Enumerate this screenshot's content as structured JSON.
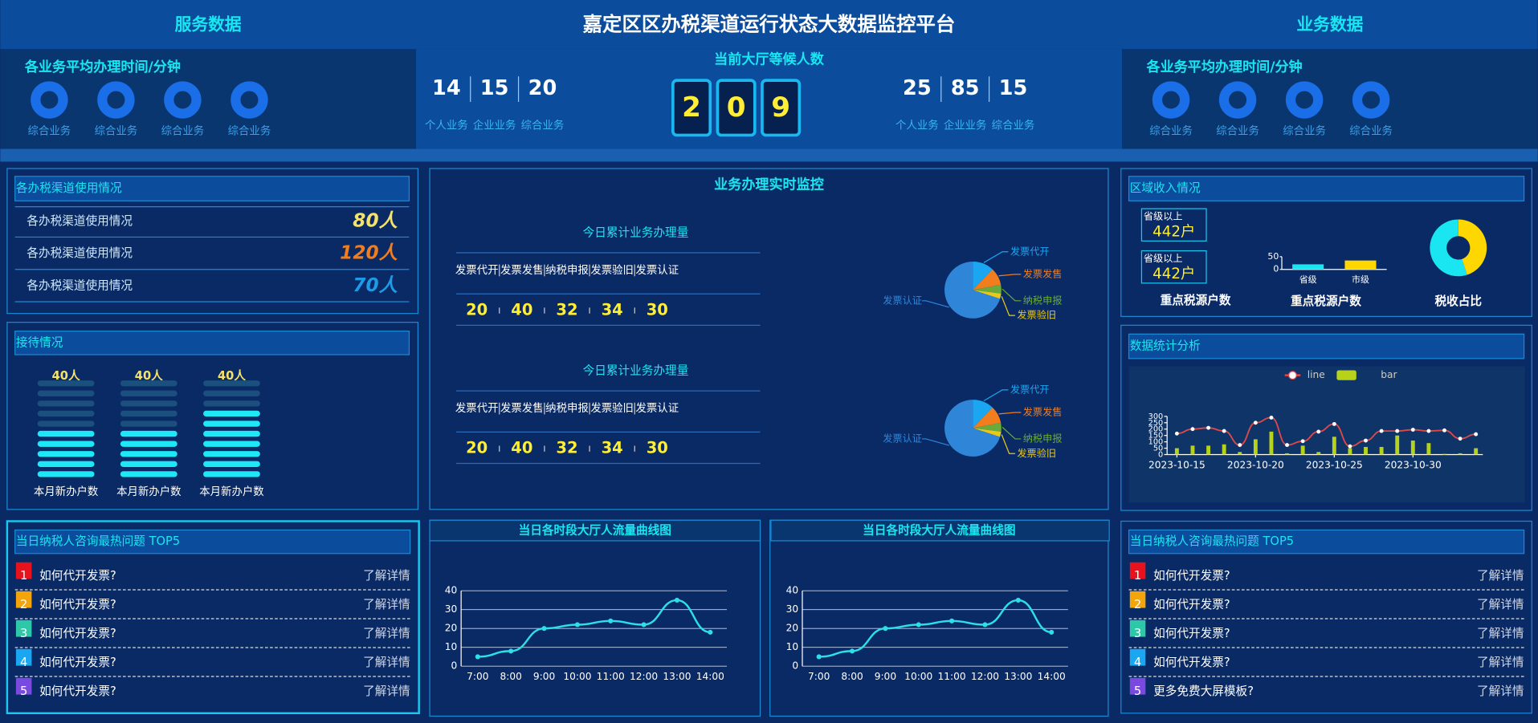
{
  "header": {
    "left": "服务数据",
    "title": "嘉定区区办税渠道运行状态大数据监控平台",
    "right": "业务数据"
  },
  "top_left": {
    "title": "各业务平均办理时间/分钟",
    "rings": [
      "综合业务",
      "综合业务",
      "综合业务",
      "综合业务"
    ]
  },
  "top_mid_left": {
    "values": [
      14,
      15,
      20
    ],
    "labels": [
      "个人业务",
      "企业业务",
      "综合业务"
    ]
  },
  "waiting": {
    "title": "当前大厅等候人数",
    "digits": [
      2,
      0,
      9
    ]
  },
  "top_mid_right": {
    "values": [
      25,
      85,
      15
    ],
    "labels": [
      "个人业务",
      "企业业务",
      "综合业务"
    ]
  },
  "top_right": {
    "title": "各业务平均办理时间/分钟",
    "rings": [
      "综合业务",
      "综合业务",
      "综合业务",
      "综合业务"
    ]
  },
  "channels": {
    "title": "各办税渠道使用情况",
    "rows": [
      {
        "label": "各办税渠道使用情况",
        "value": "80人",
        "color": "#f5e16b"
      },
      {
        "label": "各办税渠道使用情况",
        "value": "120人",
        "color": "#f07d1e"
      },
      {
        "label": "各办税渠道使用情况",
        "value": "70人",
        "color": "#1e9be8"
      }
    ]
  },
  "reception": {
    "title": "接待情况",
    "segments": 10,
    "items": [
      {
        "value": "40人",
        "label": "本月新办户数",
        "filled": 5
      },
      {
        "value": "40人",
        "label": "本月新办户数",
        "filled": 5
      },
      {
        "value": "40人",
        "label": "本月新办户数",
        "filled": 7
      }
    ]
  },
  "hot_left": {
    "title": "当日纳税人咨询最热问题 TOP5",
    "items": [
      {
        "rank": 1,
        "question": "如何代开发票?",
        "link": "了解详情",
        "color": "#e8121c"
      },
      {
        "rank": 2,
        "question": "如何代开发票?",
        "link": "了解详情",
        "color": "#f5a50c"
      },
      {
        "rank": 3,
        "question": "如何代开发票?",
        "link": "了解详情",
        "color": "#2ec7a8"
      },
      {
        "rank": 4,
        "question": "如何代开发票?",
        "link": "了解详情",
        "color": "#1aa6f0"
      },
      {
        "rank": 5,
        "question": "如何代开发票?",
        "link": "了解详情",
        "color": "#7a4ae0"
      }
    ]
  },
  "monitor": {
    "title": "业务办理实时监控",
    "blocks": [
      {
        "title": "今日累计业务办理量",
        "headers": [
          "发票代开",
          "发票发售",
          "纳税申报",
          "发票验旧",
          "发票认证"
        ],
        "values": [
          20,
          40,
          32,
          34,
          30
        ],
        "pie": {
          "type": "pie",
          "labels": [
            "发票代开",
            "发票发售",
            "纳税申报",
            "发票验旧",
            "发票认证"
          ],
          "values": [
            12,
            10,
            5,
            3,
            70
          ],
          "colors": [
            "#1aa6f0",
            "#f07d1e",
            "#6aaa3a",
            "#e8c81a",
            "#2f86d8"
          ]
        }
      },
      {
        "title": "今日累计业务办理量",
        "headers": [
          "发票代开",
          "发票发售",
          "纳税申报",
          "发票验旧",
          "发票认证"
        ],
        "values": [
          20,
          40,
          32,
          34,
          30
        ],
        "pie": {
          "type": "pie",
          "labels": [
            "发票代开",
            "发票发售",
            "纳税申报",
            "发票验旧",
            "发票认证"
          ],
          "values": [
            12,
            10,
            5,
            3,
            70
          ],
          "colors": [
            "#1aa6f0",
            "#f07d1e",
            "#6aaa3a",
            "#e8c81a",
            "#2f86d8"
          ]
        }
      }
    ]
  },
  "flow_charts": [
    {
      "type": "line",
      "title": "当日各时段大厅人流量曲线图",
      "categories": [
        "7:00",
        "8:00",
        "9:00",
        "10:00",
        "11:00",
        "12:00",
        "13:00",
        "14:00"
      ],
      "values": [
        5,
        8,
        20,
        22,
        24,
        22,
        35,
        18
      ],
      "ylim": [
        0,
        40
      ],
      "yticks": [
        0,
        10,
        20,
        30,
        40
      ],
      "color": "#2de0e8"
    },
    {
      "type": "line",
      "title": "当日各时段大厅人流量曲线图",
      "categories": [
        "7:00",
        "8:00",
        "9:00",
        "10:00",
        "11:00",
        "12:00",
        "13:00",
        "14:00"
      ],
      "values": [
        5,
        8,
        20,
        22,
        24,
        22,
        35,
        18
      ],
      "ylim": [
        0,
        40
      ],
      "yticks": [
        0,
        10,
        20,
        30,
        40
      ],
      "color": "#2de0e8"
    }
  ],
  "region": {
    "title": "区域收入情况",
    "boxes": [
      {
        "label": "省级以上",
        "value": "442户"
      },
      {
        "label": "省级以上",
        "value": "442户"
      }
    ],
    "boxes_caption": "重点税源户数",
    "bar_chart": {
      "type": "bar",
      "title": "重点税源户数",
      "categories": [
        "省级",
        "市级"
      ],
      "values": [
        20,
        35
      ],
      "colors": [
        "#19e6f0",
        "#ffd700"
      ],
      "ylim": [
        0,
        50
      ],
      "yticks": [
        0,
        50
      ]
    },
    "donut": {
      "type": "pie",
      "title": "税收占比",
      "values": [
        45,
        55
      ],
      "colors": [
        "#ffd700",
        "#19e6f0"
      ]
    }
  },
  "stats": {
    "title": "数据统计分析",
    "chart": {
      "type": "line_bar",
      "x": [
        "2023-10-15",
        "2023-10-16",
        "2023-10-17",
        "2023-10-18",
        "2023-10-19",
        "2023-10-20",
        "2023-10-21",
        "2023-10-22",
        "2023-10-23",
        "2023-10-24",
        "2023-10-25",
        "2023-10-26",
        "2023-10-27",
        "2023-10-28",
        "2023-10-29",
        "2023-10-30",
        "2023-10-31",
        "2023-11-01",
        "2023-11-02",
        "2023-11-03"
      ],
      "series": [
        {
          "name": "line",
          "type": "line",
          "color": "#e04848",
          "values": [
            165,
            200,
            210,
            185,
            75,
            250,
            290,
            75,
            105,
            180,
            240,
            65,
            110,
            185,
            185,
            195,
            185,
            190,
            125,
            160
          ]
        },
        {
          "name": "bar",
          "type": "bar",
          "color": "#b6d21a",
          "values": [
            50,
            70,
            70,
            80,
            20,
            120,
            180,
            10,
            70,
            20,
            140,
            50,
            60,
            60,
            150,
            110,
            90,
            5,
            10,
            50
          ]
        }
      ],
      "ylim": [
        0,
        300
      ],
      "yticks": [
        0,
        50,
        100,
        150,
        200,
        250,
        300
      ],
      "xticks": [
        "2023-10-15",
        "2023-10-20",
        "2023-10-25",
        "2023-10-30"
      ]
    }
  },
  "hot_right": {
    "title": "当日纳税人咨询最热问题 TOP5",
    "items": [
      {
        "rank": 1,
        "question": "如何代开发票?",
        "link": "了解详情",
        "color": "#e8121c"
      },
      {
        "rank": 2,
        "question": "如何代开发票?",
        "link": "了解详情",
        "color": "#f5a50c"
      },
      {
        "rank": 3,
        "question": "如何代开发票?",
        "link": "了解详情",
        "color": "#2ec7a8"
      },
      {
        "rank": 4,
        "question": "如何代开发票?",
        "link": "了解详情",
        "color": "#1aa6f0"
      },
      {
        "rank": 5,
        "question": "更多免费大屏模板?",
        "link": "了解详情",
        "color": "#7a4ae0"
      }
    ]
  }
}
